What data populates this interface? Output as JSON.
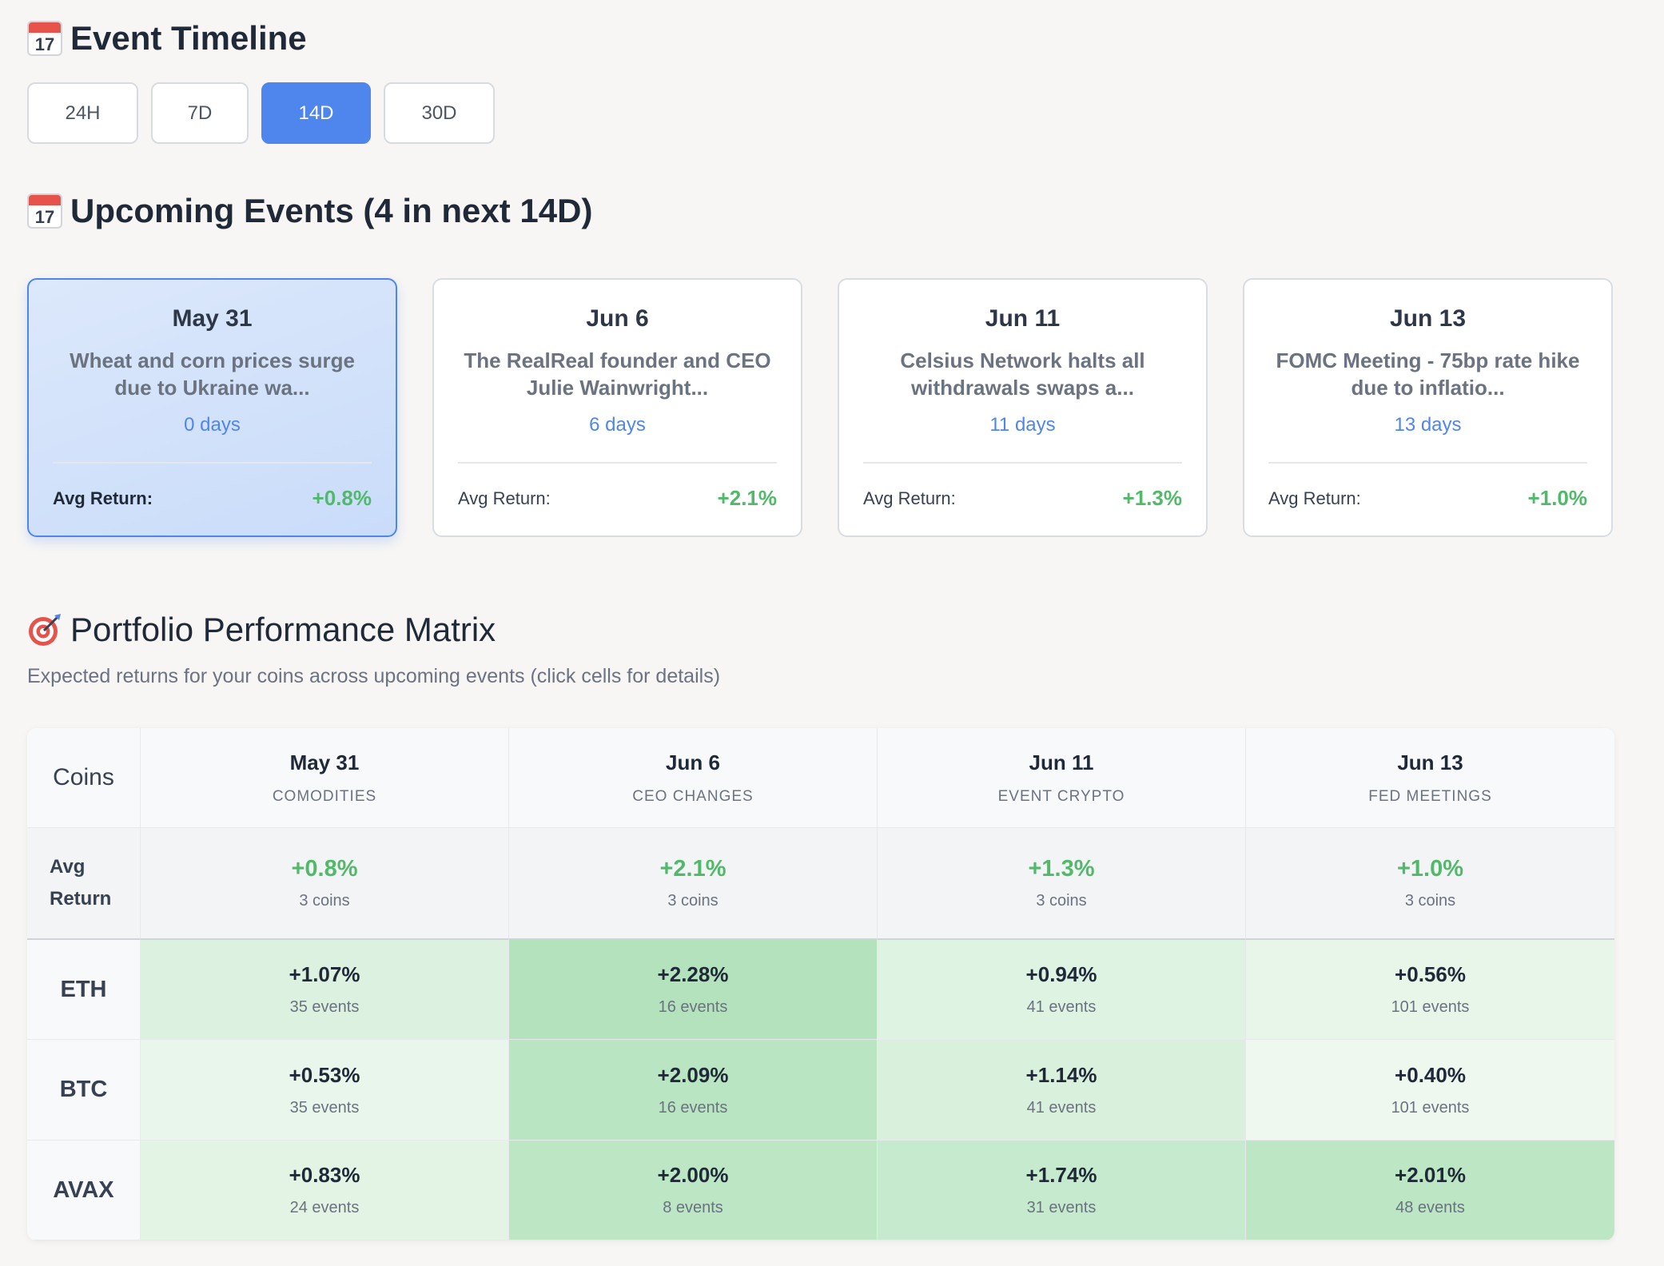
{
  "timeline": {
    "title": "Event Timeline",
    "icon": "calendar-icon",
    "icon_number": "17",
    "tabs": [
      {
        "label": "24H",
        "active": false
      },
      {
        "label": "7D",
        "active": false
      },
      {
        "label": "14D",
        "active": true
      },
      {
        "label": "30D",
        "active": false
      }
    ]
  },
  "upcoming": {
    "title": "Upcoming Events (4 in next 14D)",
    "icon": "calendar-icon",
    "icon_number": "17",
    "return_label": "Avg Return:",
    "events": [
      {
        "date": "May 31",
        "description": "Wheat and corn prices surge due to Ukraine wa...",
        "days": "0 days",
        "avg_return": "+0.8%",
        "selected": true
      },
      {
        "date": "Jun 6",
        "description": "The RealReal founder and CEO Julie Wainwright...",
        "days": "6 days",
        "avg_return": "+2.1%",
        "selected": false
      },
      {
        "date": "Jun 11",
        "description": "Celsius Network halts all withdrawals swaps a...",
        "days": "11 days",
        "avg_return": "+1.3%",
        "selected": false
      },
      {
        "date": "Jun 13",
        "description": "FOMC Meeting - 75bp rate hike due to inflatio...",
        "days": "13 days",
        "avg_return": "+1.0%",
        "selected": false
      }
    ]
  },
  "matrix": {
    "title": "Portfolio Performance Matrix",
    "icon": "target-icon",
    "subtitle": "Expected returns for your coins across upcoming events (click cells for details)",
    "corner_label": "Coins",
    "avg_label_line1": "Avg",
    "avg_label_line2": "Return",
    "columns": [
      {
        "date": "May 31",
        "category": "COMODITIES",
        "avg_return": "+0.8%",
        "coins": "3 coins"
      },
      {
        "date": "Jun 6",
        "category": "CEO CHANGES",
        "avg_return": "+2.1%",
        "coins": "3 coins"
      },
      {
        "date": "Jun 11",
        "category": "EVENT CRYPTO",
        "avg_return": "+1.3%",
        "coins": "3 coins"
      },
      {
        "date": "Jun 13",
        "category": "FED MEETINGS",
        "avg_return": "+1.0%",
        "coins": "3 coins"
      }
    ],
    "rows": [
      {
        "coin": "ETH",
        "cells": [
          {
            "value": "+1.07%",
            "events": "35 events",
            "color": "#dcf1df"
          },
          {
            "value": "+2.28%",
            "events": "16 events",
            "color": "#b3e2bd"
          },
          {
            "value": "+0.94%",
            "events": "41 events",
            "color": "#dff3e2"
          },
          {
            "value": "+0.56%",
            "events": "101 events",
            "color": "#e8f6ea"
          }
        ]
      },
      {
        "coin": "BTC",
        "cells": [
          {
            "value": "+0.53%",
            "events": "35 events",
            "color": "#e9f6eb"
          },
          {
            "value": "+2.09%",
            "events": "16 events",
            "color": "#b9e5c2"
          },
          {
            "value": "+1.14%",
            "events": "41 events",
            "color": "#d9f0dc"
          },
          {
            "value": "+0.40%",
            "events": "101 events",
            "color": "#eef8ef"
          }
        ]
      },
      {
        "coin": "AVAX",
        "cells": [
          {
            "value": "+0.83%",
            "events": "24 events",
            "color": "#e3f4e5"
          },
          {
            "value": "+2.00%",
            "events": "8 events",
            "color": "#bce6c4"
          },
          {
            "value": "+1.74%",
            "events": "31 events",
            "color": "#c6eacd"
          },
          {
            "value": "+2.01%",
            "events": "48 events",
            "color": "#bce6c4"
          }
        ]
      }
    ]
  }
}
